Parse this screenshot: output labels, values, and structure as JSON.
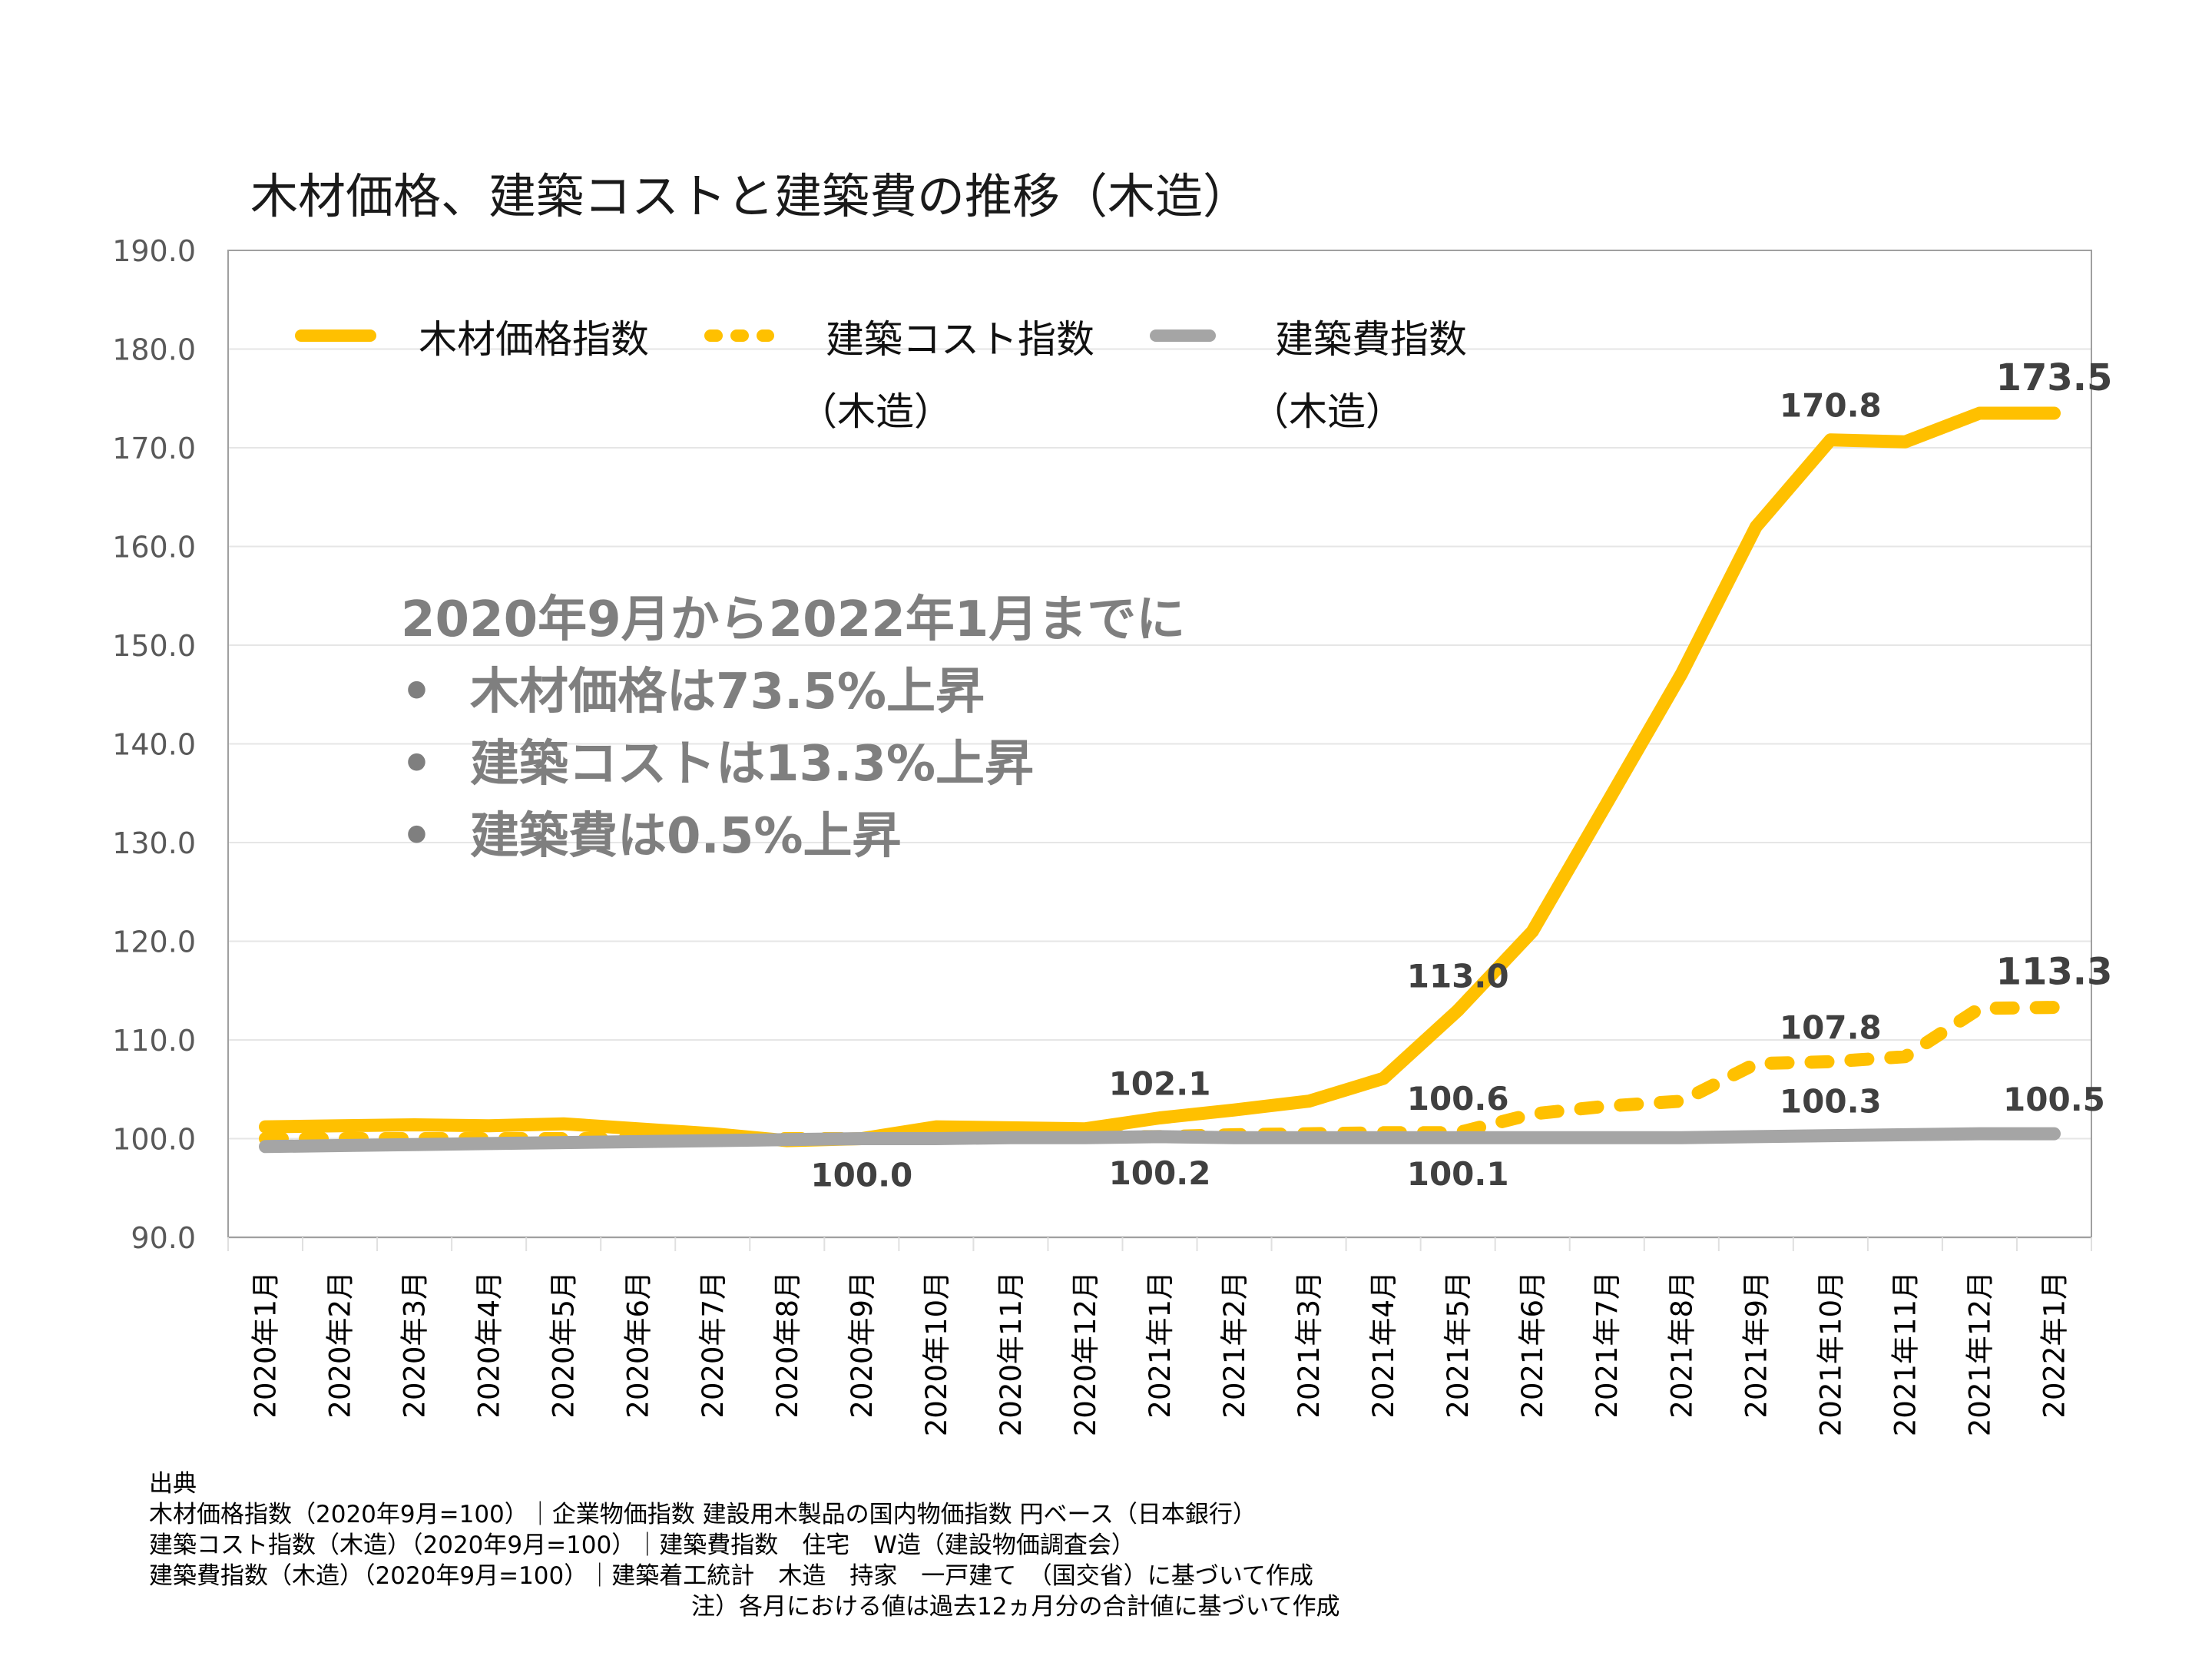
{
  "chart_data": {
    "type": "line",
    "title": "木材価格、建築コストと建築費の推移（木造）",
    "xlabel": "",
    "ylabel": "",
    "ylim": [
      90,
      190
    ],
    "yticks": [
      "90.0",
      "100.0",
      "110.0",
      "120.0",
      "130.0",
      "140.0",
      "150.0",
      "160.0",
      "170.0",
      "180.0",
      "190.0"
    ],
    "grid": true,
    "legend_position": "top",
    "categories": [
      "2020年1月",
      "2020年2月",
      "2020年3月",
      "2020年4月",
      "2020年5月",
      "2020年6月",
      "2020年7月",
      "2020年8月",
      "2020年9月",
      "2020年10月",
      "2020年11月",
      "2020年12月",
      "2021年1月",
      "2021年2月",
      "2021年3月",
      "2021年4月",
      "2021年5月",
      "2021年6月",
      "2021年7月",
      "2021年8月",
      "2021年9月",
      "2021年10月",
      "2021年11月",
      "2021年12月",
      "2022年1月"
    ],
    "series": [
      {
        "name": "木材価格指数",
        "style": "solid",
        "color": "#FFC000",
        "values": [
          101.2,
          101.3,
          101.4,
          101.3,
          101.5,
          101.0,
          100.5,
          99.8,
          100.0,
          101.2,
          101.1,
          101.0,
          102.1,
          102.9,
          103.8,
          106.1,
          113.0,
          121.0,
          134.0,
          147.1,
          162.0,
          170.8,
          170.6,
          173.5,
          173.5
        ]
      },
      {
        "name": "建築コスト指数（木造）",
        "style": "dashed",
        "color": "#FFC000",
        "values": [
          100.0,
          100.0,
          100.0,
          100.0,
          100.0,
          100.0,
          100.0,
          100.0,
          100.0,
          100.1,
          100.2,
          100.2,
          100.2,
          100.4,
          100.5,
          100.6,
          100.6,
          102.5,
          103.3,
          103.8,
          107.6,
          107.8,
          108.3,
          113.2,
          113.3
        ]
      },
      {
        "name": "建築費指数（木造）",
        "style": "solid",
        "color": "#A5A5A5",
        "values": [
          99.2,
          99.3,
          99.4,
          99.5,
          99.6,
          99.7,
          99.8,
          99.9,
          100.0,
          100.0,
          100.1,
          100.1,
          100.2,
          100.1,
          100.1,
          100.1,
          100.1,
          100.1,
          100.1,
          100.1,
          100.2,
          100.3,
          100.4,
          100.5,
          100.5
        ]
      }
    ],
    "data_labels": [
      {
        "series": 0,
        "index": 12,
        "text": "102.1",
        "pos": "above"
      },
      {
        "series": 0,
        "index": 16,
        "text": "113.0",
        "pos": "above"
      },
      {
        "series": 0,
        "index": 21,
        "text": "170.8",
        "pos": "above"
      },
      {
        "series": 0,
        "index": 24,
        "text": "173.5",
        "pos": "above",
        "emph": true
      },
      {
        "series": 1,
        "index": 16,
        "text": "100.6",
        "pos": "above"
      },
      {
        "series": 1,
        "index": 21,
        "text": "107.8",
        "pos": "above"
      },
      {
        "series": 1,
        "index": 24,
        "text": "113.3",
        "pos": "above",
        "emph": true
      },
      {
        "series": 2,
        "index": 8,
        "text": "100.0",
        "pos": "below"
      },
      {
        "series": 2,
        "index": 12,
        "text": "100.2",
        "pos": "below"
      },
      {
        "series": 2,
        "index": 16,
        "text": "100.1",
        "pos": "below"
      },
      {
        "series": 2,
        "index": 21,
        "text": "100.3",
        "pos": "above"
      },
      {
        "series": 2,
        "index": 24,
        "text": "100.5",
        "pos": "above"
      }
    ]
  },
  "legend": {
    "items": [
      {
        "label": "木材価格指数",
        "sub": ""
      },
      {
        "label": "建築コスト指数",
        "sub": "（木造）"
      },
      {
        "label": "建築費指数",
        "sub": "（木造）"
      }
    ]
  },
  "annotation": {
    "heading": "2020年9月から2022年1月までに",
    "bullet": "•",
    "points": [
      "木材価格は73.5%上昇",
      "建築コストは13.3%上昇",
      "建築費は0.5%上昇"
    ]
  },
  "footnotes": {
    "heading": "出典",
    "lines": [
      "木材価格指数（2020年9月=100）｜企業物価指数  建設用木製品の国内物価指数  円ベース（日本銀行）",
      "建築コスト指数（木造）（2020年9月=100）｜建築費指数　住宅　W造（建設物価調査会）",
      "建築費指数（木造）（2020年9月=100）｜建築着工統計　木造　持家　一戸建て　（国交省）に基づいて作成"
    ],
    "note": "注）各月における値は過去12ヵ月分の合計値に基づいて作成"
  },
  "colors": {
    "lumber": "#FFC000",
    "building_cost": "#A5A5A5",
    "label_text": "#404040",
    "annotation_text": "#7F7F7F",
    "axis_text": "#595959",
    "gridline": "#E6E6E6"
  }
}
